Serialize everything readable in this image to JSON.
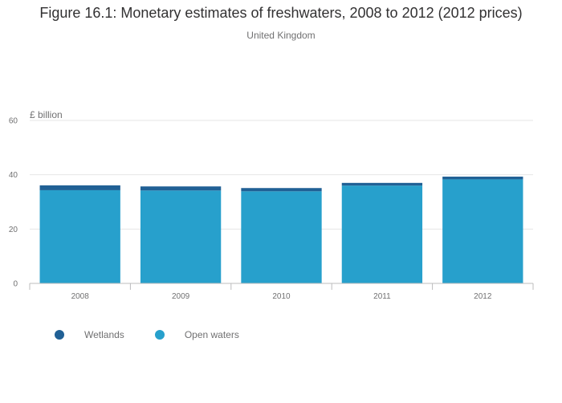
{
  "chart_data": {
    "type": "bar",
    "stacked": true,
    "title": "Figure 16.1: Monetary estimates of freshwaters, 2008 to 2012 (2012 prices)",
    "subtitle": "United Kingdom",
    "ylabel": "£ billion",
    "xlabel": "",
    "categories": [
      "2008",
      "2009",
      "2010",
      "2011",
      "2012"
    ],
    "ylim": [
      0,
      60
    ],
    "yticks": [
      "0",
      "20",
      "40",
      "60"
    ],
    "grid": true,
    "legend_position": "bottom-left",
    "series": [
      {
        "name": "Open waters",
        "color": "#27a0cc",
        "values": [
          34.3,
          34.2,
          33.9,
          36.0,
          38.3
        ]
      },
      {
        "name": "Wetlands",
        "color": "#206095",
        "values": [
          1.8,
          1.5,
          1.2,
          1.0,
          1.0
        ]
      }
    ],
    "legend": [
      {
        "name": "Wetlands",
        "color": "#206095"
      },
      {
        "name": "Open waters",
        "color": "#27a0cc"
      }
    ]
  }
}
